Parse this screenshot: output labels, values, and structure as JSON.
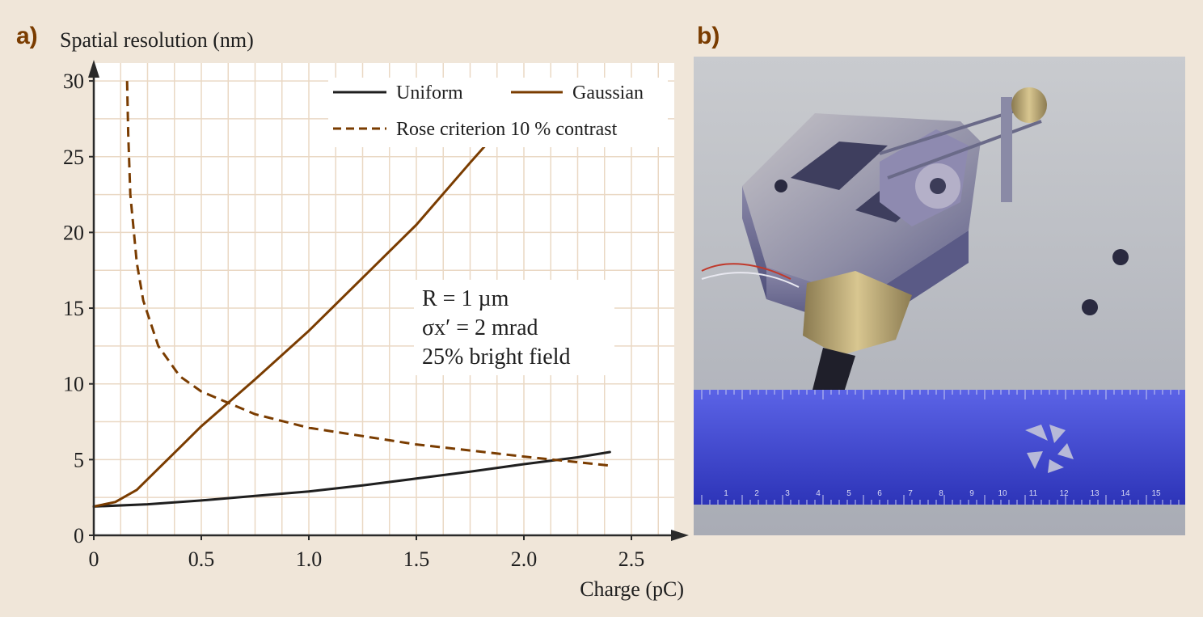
{
  "panels": {
    "a_label": "a)",
    "b_label": "b)"
  },
  "chart_data": {
    "type": "line",
    "ylabel": "Spatial resolution (nm)",
    "xlabel": "Charge (pC)",
    "xlim": [
      0,
      2.75
    ],
    "ylim": [
      0,
      31
    ],
    "x_ticks": [
      0,
      0.5,
      1.0,
      1.5,
      2.0,
      2.5
    ],
    "x_tick_labels": [
      "0",
      "0.5",
      "1.0",
      "1.5",
      "2.0",
      "2.5"
    ],
    "y_ticks": [
      0,
      5,
      10,
      15,
      20,
      25,
      30
    ],
    "y_tick_labels": [
      "0",
      "5",
      "10",
      "15",
      "20",
      "25",
      "30"
    ],
    "grid": true,
    "legend_position": "top-right",
    "series": [
      {
        "name": "Uniform",
        "color": "#1f1f1f",
        "style": "solid",
        "x": [
          0,
          0.25,
          0.5,
          0.75,
          1.0,
          1.25,
          1.5,
          1.75,
          2.0,
          2.25,
          2.4
        ],
        "y": [
          1.9,
          2.05,
          2.3,
          2.6,
          2.9,
          3.3,
          3.75,
          4.2,
          4.7,
          5.15,
          5.5
        ]
      },
      {
        "name": "Gaussian",
        "color": "#7a3c00",
        "style": "solid",
        "x": [
          0,
          0.1,
          0.2,
          0.3,
          0.4,
          0.5,
          0.75,
          1.0,
          1.25,
          1.5,
          1.75,
          1.85
        ],
        "y": [
          1.9,
          2.2,
          3.0,
          4.4,
          5.8,
          7.2,
          10.3,
          13.5,
          17.0,
          20.5,
          24.6,
          26.2
        ]
      },
      {
        "name": "Rose criterion 10 % contrast",
        "color": "#7a3c00",
        "style": "dashed",
        "x": [
          0.155,
          0.16,
          0.17,
          0.2,
          0.23,
          0.3,
          0.4,
          0.5,
          0.75,
          1.0,
          1.5,
          2.0,
          2.4
        ],
        "y": [
          30,
          26.5,
          22.5,
          18.0,
          15.5,
          12.5,
          10.5,
          9.5,
          8.0,
          7.1,
          6.0,
          5.2,
          4.6
        ]
      }
    ],
    "annotation": {
      "r_line": "R = 1 µm",
      "sigma_line": "σx′ = 2 mrad",
      "field_line": "25% bright field"
    }
  },
  "photo": {
    "description_icon": "photo-icon",
    "ruler_numbers": [
      "1",
      "2",
      "3",
      "4",
      "5",
      "6",
      "7",
      "8",
      "9",
      "10",
      "11",
      "12",
      "13",
      "14",
      "15"
    ]
  }
}
